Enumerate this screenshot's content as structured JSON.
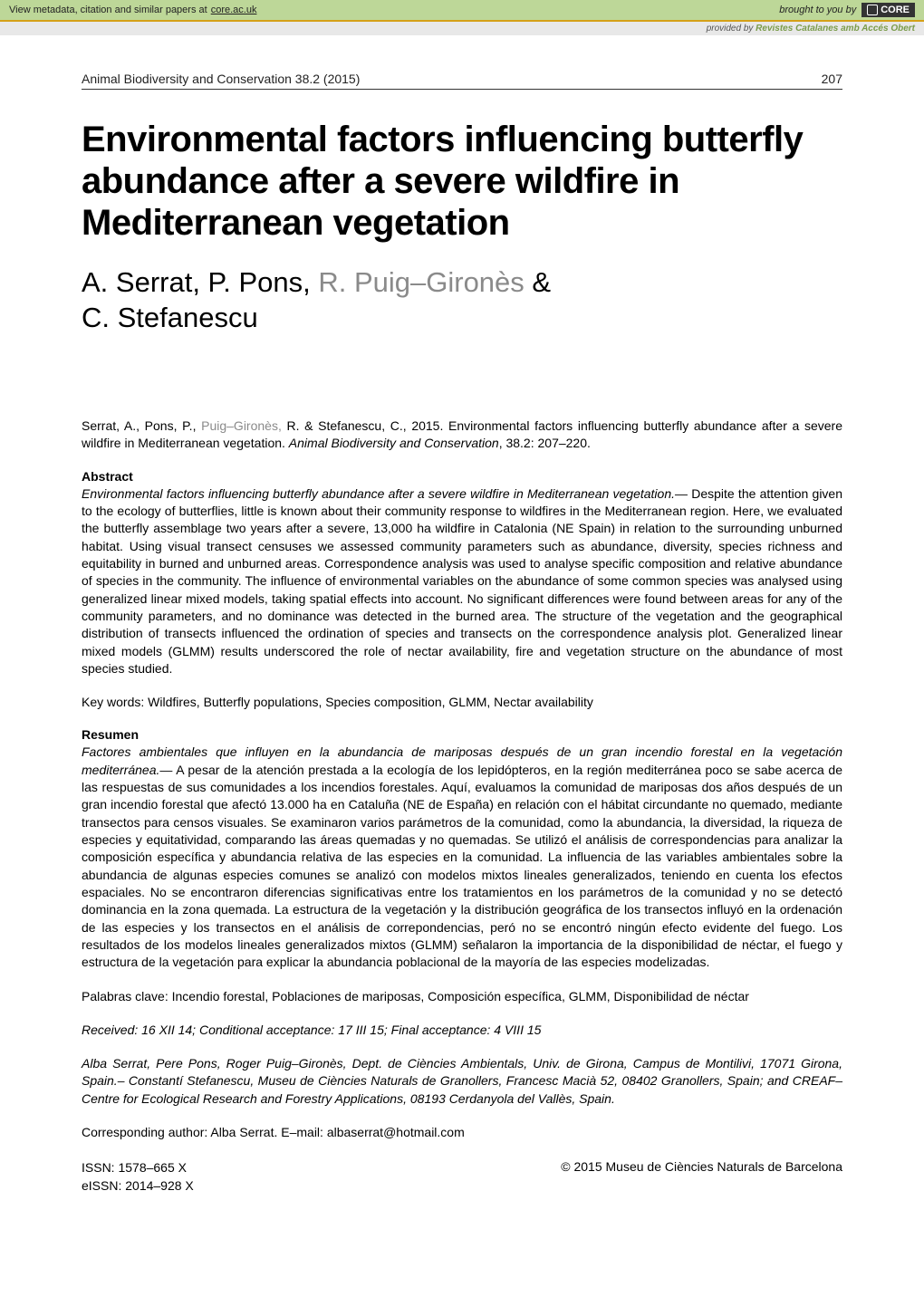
{
  "banner": {
    "metadata_text": "View metadata, citation and similar papers at",
    "core_link": "core.ac.uk",
    "brought_by": "brought to you by",
    "core_label": "CORE",
    "provided_prefix": "provided by",
    "provider": "Revistes Catalanes amb Accés Obert"
  },
  "header": {
    "journal": "Animal Biodiversity and Conservation 38.2 (2015)",
    "page_number": "207"
  },
  "title": "Environmental factors influencing butterfly abundance after a severe wildfire in Mediterranean vegetation",
  "authors": {
    "a1": "A. Serrat, P. Pons,",
    "a2_gray": " R. Puig–Gironès ",
    "amp": "& ",
    "a3": "C. Stefanescu"
  },
  "citation": {
    "pre": "Serrat, A., Pons, P., ",
    "mid_gray": "Puig–Gironès,",
    "post": " R. & Stefanescu, C., 2015. Environmental factors influencing butterfly abundance after a severe wildfire in Mediterranean vegetation. ",
    "journal": "Animal Biodiversity and Conservation",
    "tail": ", 38.2: 207–220."
  },
  "abstract": {
    "heading": "Abstract",
    "title": "Environmental factors influencing butterfly abundance after a severe wildfire in Mediterranean vegetation.—",
    "body": " Despite the attention given to the ecology of butterflies, little is known about their community response to wildfires in the Mediterranean region. Here, we evaluated the butterfly assemblage two years after a severe, 13,000 ha wildfire in Catalonia (NE Spain) in relation to the surrounding unburned habitat. Using visual transect censuses we assessed community parameters such as abundance, diversity, species richness and equitability in burned and unburned areas. Correspondence analysis was used to analyse specific composition and relative abundance of species in the community. The influence of environmental variables on the abundance of some common species was analysed using generalized linear mixed models, taking spatial effects into account. No significant differences were found between areas for any of the community parameters, and no dominance was detected in the burned area. The structure of the vegetation and the geographical distribution of transects influenced the ordination of species and transects on the correspondence analysis plot. Generalized linear mixed models (GLMM) results underscored the role of nectar availability, fire and vegetation structure on the abundance of most species studied."
  },
  "keywords": "Key words: Wildfires, Butterfly populations, Species composition, GLMM, Nectar availability",
  "resumen": {
    "heading": "Resumen",
    "title": "Factores ambientales que influyen en la abundancia de mariposas después de un gran incendio forestal en la vegetación mediterránea.—",
    "body": " A pesar de la atención prestada a la ecología de los lepidópteros, en la región mediterránea poco se sabe acerca de las respuestas de sus comunidades a los incendios forestales. Aquí, evaluamos la comunidad de mariposas dos años después de un gran incendio forestal que afectó 13.000 ha en Cataluña (NE de España) en relación con el hábitat circundante no quemado, mediante transectos para censos visuales. Se examinaron varios parámetros de la comunidad, como la abundancia, la diversidad, la riqueza de especies y equitatividad, comparando las áreas quemadas y no quemadas. Se utilizó el análisis de correspondencias para analizar la composición específica y abundancia relativa de las especies en la comunidad. La influencia de las variables ambientales sobre la abundancia de algunas especies comunes se analizó con modelos mixtos lineales generalizados, teniendo en cuenta los efectos espaciales. No se encontraron diferencias significativas entre los tratamientos en los parámetros de la comunidad y no se detectó dominancia en la zona quemada. La estructura de la vegetación y la distribución geográfica de los transectos influyó en la ordenación de las especies y los transectos en el análisis de correpondencias, peró no se encontró ningún efecto evidente del fuego. Los resultados de los modelos lineales generalizados mixtos (GLMM) señalaron la importancia de la disponibilidad de néctar, el fuego y estructura de la vegetación para explicar la abundancia poblacional de la mayoría de las especies modelizadas."
  },
  "palabras": "Palabras clave: Incendio forestal, Poblaciones de mariposas, Composición específica, GLMM, Disponibilidad de néctar",
  "received": "Received: 16 XII 14; Conditional acceptance: 17 III 15; Final acceptance: 4 VIII 15",
  "affil": "Alba Serrat, Pere Pons, Roger Puig–Gironès, Dept. de Ciències Ambientals, Univ. de Girona, Campus de Montilivi, 17071 Girona, Spain.– Constantí Stefanescu, Museu de Ciències Naturals de Granollers, Francesc Macià 52, 08402 Granollers, Spain; and CREAF–Centre for Ecological Research and Forestry Applications, 08193 Cerdanyola del Vallès, Spain.",
  "corresponding": "Corresponding author: Alba Serrat. E–mail: albaserrat@hotmail.com",
  "footer": {
    "issn": "ISSN: 1578–665 X",
    "eissn": "eISSN: 2014–928 X",
    "copyright": "© 2015 Museu de Ciències Naturals de Barcelona"
  },
  "colors": {
    "banner_bg": "#bdd798",
    "banner_border": "#d4a017",
    "gray_text": "#8a8a8a",
    "provider_green": "#7a9b4a"
  }
}
